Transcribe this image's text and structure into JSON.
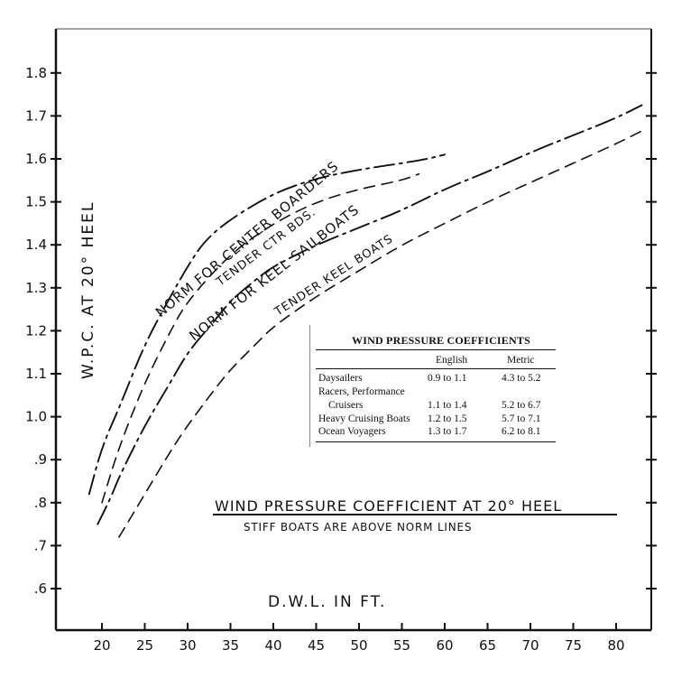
{
  "chart_data": {
    "type": "line",
    "title": "WIND PRESSURE COEFFICIENT AT 20° HEEL",
    "subtitle": "STIFF BOATS ARE ABOVE NORM LINES",
    "xlabel": "D.W.L. IN FT.",
    "ylabel": "W.P.C. AT 20° HEEL",
    "xlim": [
      20,
      80
    ],
    "ylim": [
      0.6,
      1.8
    ],
    "x_ticks": [
      20,
      25,
      30,
      35,
      40,
      45,
      50,
      55,
      60,
      65,
      70,
      75,
      80
    ],
    "x_tick_labels": [
      "20",
      "25",
      "30",
      "35",
      "40",
      "45",
      "50",
      "55",
      "60",
      "65",
      "70",
      "75",
      "80"
    ],
    "y_ticks": [
      0.6,
      0.7,
      0.8,
      0.9,
      1.0,
      1.1,
      1.2,
      1.3,
      1.4,
      1.5,
      1.6,
      1.7,
      1.8
    ],
    "y_tick_labels": [
      ".6",
      ".7",
      ".8",
      ".9",
      "1.0",
      "1.1",
      "1.2",
      "1.3",
      "1.4",
      "1.5",
      "1.6",
      "1.7",
      "1.8"
    ],
    "grid": false,
    "series": [
      {
        "name": "NORM FOR CENTER BOARDERS",
        "style": "solid-dashdot",
        "points": [
          [
            18.5,
            0.82
          ],
          [
            20,
            0.93
          ],
          [
            22,
            1.02
          ],
          [
            25,
            1.17
          ],
          [
            28,
            1.28
          ],
          [
            30,
            1.35
          ],
          [
            32,
            1.41
          ],
          [
            35,
            1.46
          ],
          [
            40,
            1.52
          ],
          [
            45,
            1.555
          ],
          [
            50,
            1.575
          ],
          [
            55,
            1.59
          ],
          [
            58,
            1.6
          ],
          [
            60,
            1.61
          ]
        ]
      },
      {
        "name": "TENDER CTR BDS.",
        "style": "dashed",
        "points": [
          [
            20,
            0.8
          ],
          [
            22,
            0.93
          ],
          [
            25,
            1.08
          ],
          [
            28,
            1.2
          ],
          [
            30,
            1.27
          ],
          [
            35,
            1.38
          ],
          [
            40,
            1.45
          ],
          [
            45,
            1.5
          ],
          [
            50,
            1.53
          ],
          [
            55,
            1.55
          ],
          [
            57,
            1.565
          ]
        ]
      },
      {
        "name": "NORM FOR KEEL SAILBOATS",
        "style": "solid-dashdot",
        "points": [
          [
            19.5,
            0.75
          ],
          [
            21,
            0.81
          ],
          [
            22,
            0.86
          ],
          [
            25,
            0.98
          ],
          [
            28,
            1.08
          ],
          [
            30,
            1.15
          ],
          [
            33,
            1.22
          ],
          [
            35,
            1.27
          ],
          [
            38,
            1.32
          ],
          [
            40,
            1.35
          ],
          [
            45,
            1.4
          ],
          [
            50,
            1.44
          ],
          [
            55,
            1.48
          ],
          [
            60,
            1.53
          ],
          [
            65,
            1.57
          ],
          [
            70,
            1.615
          ],
          [
            75,
            1.655
          ],
          [
            80,
            1.695
          ],
          [
            83,
            1.725
          ]
        ]
      },
      {
        "name": "TENDER KEEL BOATS",
        "style": "dashed",
        "points": [
          [
            22,
            0.72
          ],
          [
            25,
            0.82
          ],
          [
            28,
            0.92
          ],
          [
            30,
            0.98
          ],
          [
            33,
            1.06
          ],
          [
            35,
            1.11
          ],
          [
            38,
            1.17
          ],
          [
            40,
            1.21
          ],
          [
            45,
            1.28
          ],
          [
            50,
            1.34
          ],
          [
            55,
            1.4
          ],
          [
            60,
            1.45
          ],
          [
            65,
            1.5
          ],
          [
            70,
            1.545
          ],
          [
            75,
            1.59
          ],
          [
            80,
            1.635
          ],
          [
            83,
            1.665
          ]
        ]
      }
    ],
    "annotations": [
      "NORM FOR CENTER BOARDERS",
      "TENDER CTR BDS.",
      "NORM FOR KEEL SAILBOATS",
      "TENDER KEEL BOATS"
    ]
  },
  "table": {
    "title": "WIND PRESSURE COEFFICIENTS",
    "col_english": "English",
    "col_metric": "Metric",
    "rows": [
      {
        "label": "Daysailers",
        "english": "0.9 to 1.1",
        "metric": "4.3 to 5.2"
      },
      {
        "label": "Racers, Performance",
        "english": "",
        "metric": ""
      },
      {
        "label": "Cruisers",
        "english": "1.1 to 1.4",
        "metric": "5.2 to 6.7"
      },
      {
        "label": "Heavy Cruising Boats",
        "english": "1.2 to 1.5",
        "metric": "5.7 to 7.1"
      },
      {
        "label": "Ocean Voyagers",
        "english": "1.3 to 1.7",
        "metric": "6.2 to 8.1"
      }
    ]
  }
}
